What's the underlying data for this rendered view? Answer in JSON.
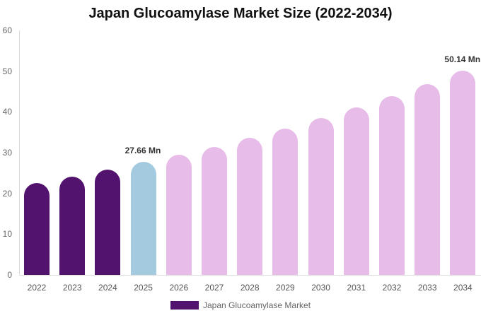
{
  "chart_data": {
    "type": "bar",
    "title": "Japan Glucoamylase Market Size (2022-2034)",
    "xlabel": "",
    "ylabel": "",
    "ylim": [
      0,
      60
    ],
    "yticks": [
      0,
      10,
      20,
      30,
      40,
      50,
      60
    ],
    "grid": false,
    "legend_position": "bottom",
    "categories": [
      "2022",
      "2023",
      "2024",
      "2025",
      "2026",
      "2027",
      "2028",
      "2029",
      "2030",
      "2031",
      "2032",
      "2033",
      "2034"
    ],
    "series": [
      {
        "name": "Japan Glucoamylase Market",
        "values": [
          22.5,
          24.1,
          25.8,
          27.66,
          29.5,
          31.4,
          33.6,
          35.9,
          38.5,
          41.1,
          43.8,
          46.8,
          50.14
        ]
      }
    ],
    "bar_colors": [
      "#52136f",
      "#52136f",
      "#52136f",
      "#a3cadf",
      "#e7bce8",
      "#e7bce8",
      "#e7bce8",
      "#e7bce8",
      "#e7bce8",
      "#e7bce8",
      "#e7bce8",
      "#e7bce8",
      "#e7bce8"
    ],
    "annotations": [
      {
        "category": "2025",
        "text": "27.66 Mn"
      },
      {
        "category": "2034",
        "text": "50.14 Mn"
      }
    ]
  },
  "legend": {
    "label": "Japan Glucoamylase Market",
    "color": "#52136f"
  }
}
